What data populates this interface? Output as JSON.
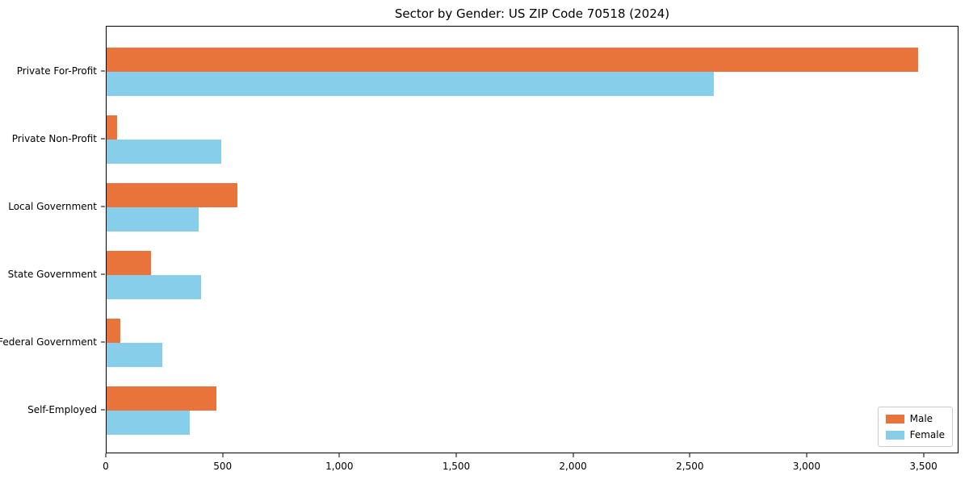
{
  "chart_data": {
    "type": "bar",
    "orientation": "horizontal",
    "title": "Sector by Gender: US ZIP Code 70518 (2024)",
    "categories": [
      "Private For-Profit",
      "Private Non-Profit",
      "Local Government",
      "State Government",
      "Federal Government",
      "Self-Employed"
    ],
    "series": [
      {
        "name": "Male",
        "color": "#E8743B",
        "values": [
          3475,
          45,
          560,
          190,
          60,
          470
        ]
      },
      {
        "name": "Female",
        "color": "#87CEEB",
        "values": [
          2600,
          490,
          395,
          405,
          240,
          355
        ]
      }
    ],
    "xlabel": "",
    "ylabel": "",
    "xlim": [
      0,
      3650
    ],
    "xticks": [
      0,
      500,
      1000,
      1500,
      2000,
      2500,
      3000,
      3500
    ],
    "xtick_labels": [
      "0",
      "500",
      "1,000",
      "1,500",
      "2,000",
      "2,500",
      "3,000",
      "3,500"
    ],
    "grid": false,
    "legend": {
      "position": "lower right",
      "entries": [
        "Male",
        "Female"
      ]
    }
  }
}
